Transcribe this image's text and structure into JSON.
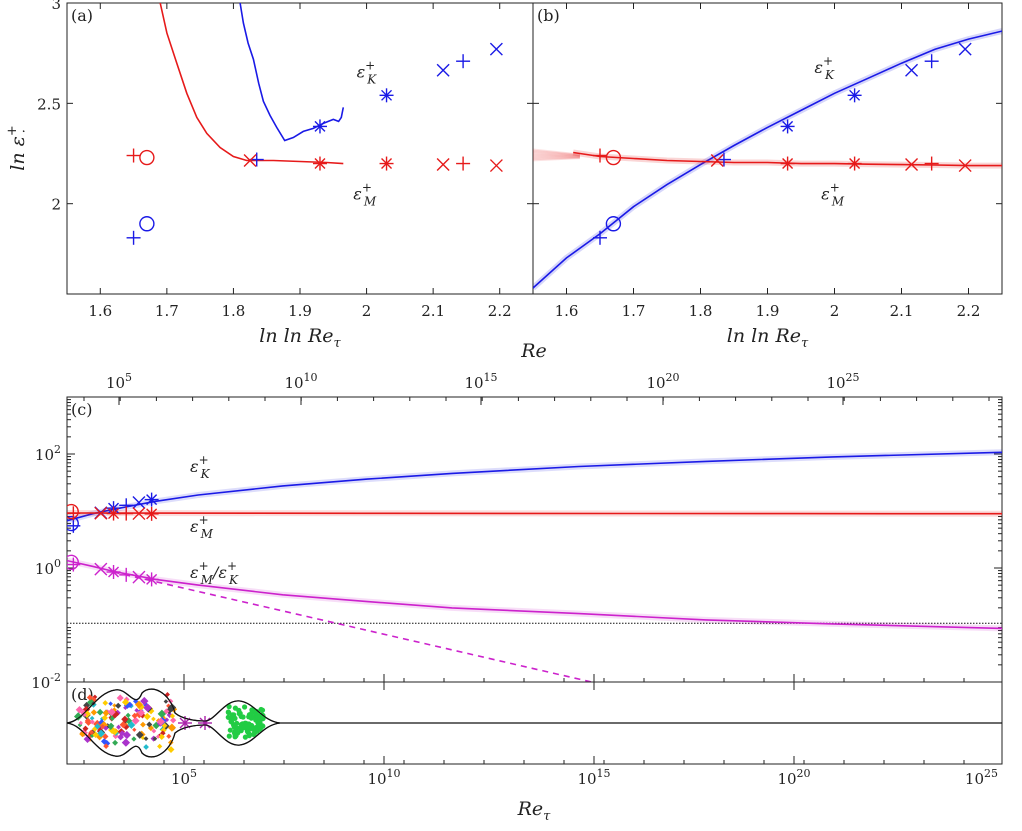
{
  "chart_data": [
    {
      "panel": "a",
      "type": "scatter",
      "panel_label": "(a)",
      "xlabel": "ln ln Re_τ",
      "ylabel": "ln ε⁺·",
      "xlim": [
        1.55,
        2.25
      ],
      "ylim": [
        1.55,
        3.0
      ],
      "xticks": [
        "1.6",
        "1.7",
        "1.8",
        "1.9",
        "2",
        "2.1",
        "2.2"
      ],
      "yticks": [
        "2",
        "2.5",
        "3"
      ],
      "annotations": {
        "eps_K": "ε⁺K",
        "eps_M": "ε⁺M"
      },
      "colors": {
        "K": "#1a1ae6",
        "M": "#e61a1a"
      },
      "series": [
        {
          "key": "K",
          "points": [
            {
              "m": "plus",
              "x": 1.65,
              "y": 1.83
            },
            {
              "m": "circle",
              "x": 1.67,
              "y": 1.9
            },
            {
              "m": "plus",
              "x": 1.835,
              "y": 2.22
            },
            {
              "m": "star",
              "x": 1.93,
              "y": 2.385
            },
            {
              "m": "star",
              "x": 2.03,
              "y": 2.54
            },
            {
              "m": "x",
              "x": 2.115,
              "y": 2.665
            },
            {
              "m": "plus",
              "x": 2.145,
              "y": 2.71
            },
            {
              "m": "x",
              "x": 2.195,
              "y": 2.77
            }
          ]
        },
        {
          "key": "M",
          "points": [
            {
              "m": "plus",
              "x": 1.65,
              "y": 2.24
            },
            {
              "m": "circle",
              "x": 1.67,
              "y": 2.23
            },
            {
              "m": "x",
              "x": 1.825,
              "y": 2.215
            },
            {
              "m": "star",
              "x": 1.93,
              "y": 2.2
            },
            {
              "m": "star",
              "x": 2.03,
              "y": 2.2
            },
            {
              "m": "x",
              "x": 2.115,
              "y": 2.195
            },
            {
              "m": "plus",
              "x": 2.145,
              "y": 2.2
            },
            {
              "m": "x",
              "x": 2.195,
              "y": 2.19
            }
          ]
        }
      ],
      "curves": [
        {
          "key": "K",
          "points": [
            [
              1.81,
              3.0
            ],
            [
              1.815,
              2.9
            ],
            [
              1.822,
              2.8
            ],
            [
              1.83,
              2.72
            ],
            [
              1.838,
              2.6
            ],
            [
              1.845,
              2.51
            ],
            [
              1.855,
              2.44
            ],
            [
              1.865,
              2.38
            ],
            [
              1.877,
              2.315
            ],
            [
              1.89,
              2.33
            ],
            [
              1.905,
              2.36
            ],
            [
              1.92,
              2.375
            ],
            [
              1.935,
              2.4
            ],
            [
              1.95,
              2.42
            ],
            [
              1.958,
              2.41
            ],
            [
              1.962,
              2.43
            ],
            [
              1.965,
              2.48
            ]
          ]
        },
        {
          "key": "M",
          "points": [
            [
              1.69,
              3.0
            ],
            [
              1.7,
              2.85
            ],
            [
              1.715,
              2.7
            ],
            [
              1.73,
              2.55
            ],
            [
              1.745,
              2.43
            ],
            [
              1.76,
              2.35
            ],
            [
              1.78,
              2.28
            ],
            [
              1.8,
              2.235
            ],
            [
              1.82,
              2.215
            ],
            [
              1.86,
              2.215
            ],
            [
              1.9,
              2.21
            ],
            [
              1.94,
              2.205
            ],
            [
              1.965,
              2.2
            ]
          ]
        }
      ]
    },
    {
      "panel": "b",
      "type": "scatter",
      "panel_label": "(b)",
      "xlabel": "ln ln Re_τ",
      "xlim": [
        1.55,
        2.25
      ],
      "ylim": [
        1.55,
        3.0
      ],
      "xticks": [
        "1.6",
        "1.7",
        "1.8",
        "1.9",
        "2",
        "2.1",
        "2.2"
      ],
      "annotations": {
        "eps_K": "ε⁺K",
        "eps_M": "ε⁺M"
      },
      "curves": [
        {
          "key": "K",
          "points": [
            [
              1.55,
              1.58
            ],
            [
              1.6,
              1.73
            ],
            [
              1.65,
              1.85
            ],
            [
              1.7,
              1.985
            ],
            [
              1.75,
              2.095
            ],
            [
              1.8,
              2.195
            ],
            [
              1.85,
              2.29
            ],
            [
              1.9,
              2.38
            ],
            [
              1.95,
              2.465
            ],
            [
              2.0,
              2.55
            ],
            [
              2.05,
              2.625
            ],
            [
              2.1,
              2.7
            ],
            [
              2.15,
              2.77
            ],
            [
              2.2,
              2.82
            ],
            [
              2.25,
              2.86
            ]
          ]
        },
        {
          "key": "M",
          "points": [
            [
              1.61,
              2.255
            ],
            [
              1.65,
              2.235
            ],
            [
              1.7,
              2.225
            ],
            [
              1.75,
              2.215
            ],
            [
              1.8,
              2.21
            ],
            [
              1.85,
              2.205
            ],
            [
              1.9,
              2.205
            ],
            [
              1.95,
              2.2
            ],
            [
              2.0,
              2.2
            ],
            [
              2.05,
              2.197
            ],
            [
              2.1,
              2.195
            ],
            [
              2.15,
              2.193
            ],
            [
              2.2,
              2.19
            ],
            [
              2.25,
              2.19
            ]
          ]
        }
      ]
    },
    {
      "panel": "c",
      "type": "line",
      "panel_label": "(c)",
      "top_axis_label": "Re",
      "top_ticks": [
        "10^5",
        "10^10",
        "10^15",
        "10^20",
        "10^25"
      ],
      "yscale": "log",
      "xscale": "log",
      "xlim_log10": [
        2.9,
        25
      ],
      "ylim_log10": [
        -2,
        3
      ],
      "yticks": [
        "10^-2",
        "10^0",
        "10^2"
      ],
      "annotations": {
        "eps_K": "ε⁺K",
        "eps_M": "ε⁺M",
        "ratio": "ε⁺M/ε⁺K"
      },
      "curves": [
        {
          "key": "K",
          "color": "#1a1ae6",
          "points": [
            [
              2.9,
              0.83
            ],
            [
              3.5,
              0.95
            ],
            [
              4.0,
              1.03
            ],
            [
              5,
              1.17
            ],
            [
              6,
              1.28
            ],
            [
              8,
              1.44
            ],
            [
              10,
              1.56
            ],
            [
              12,
              1.66
            ],
            [
              15,
              1.78
            ],
            [
              18,
              1.87
            ],
            [
              21,
              1.95
            ],
            [
              25,
              2.03
            ]
          ]
        },
        {
          "key": "M",
          "color": "#e61a1a",
          "points": [
            [
              2.9,
              0.965
            ],
            [
              10,
              0.96
            ],
            [
              20,
              0.955
            ],
            [
              25,
              0.953
            ]
          ]
        },
        {
          "key": "ratio",
          "color": "#cc22cc",
          "points": [
            [
              2.9,
              0.13
            ],
            [
              3.5,
              0.03
            ],
            [
              4.0,
              -0.06
            ],
            [
              5,
              -0.2
            ],
            [
              6,
              -0.3
            ],
            [
              8,
              -0.47
            ],
            [
              10,
              -0.59
            ],
            [
              12,
              -0.7
            ],
            [
              15,
              -0.8
            ],
            [
              18,
              -0.91
            ],
            [
              21,
              -0.98
            ],
            [
              25,
              -1.06
            ]
          ]
        },
        {
          "key": "ratio_dashed",
          "color": "#cc22cc",
          "dashed": true,
          "points": [
            [
              4.0,
              -0.07
            ],
            [
              15.3,
              -2.0
            ]
          ]
        }
      ],
      "hline_log10": -0.97
    },
    {
      "panel": "d",
      "type": "violin",
      "panel_label": "(d)",
      "xlabel": "Re_τ",
      "xticks": [
        "10^5",
        "10^10",
        "10^15",
        "10^20",
        "10^25"
      ]
    }
  ]
}
